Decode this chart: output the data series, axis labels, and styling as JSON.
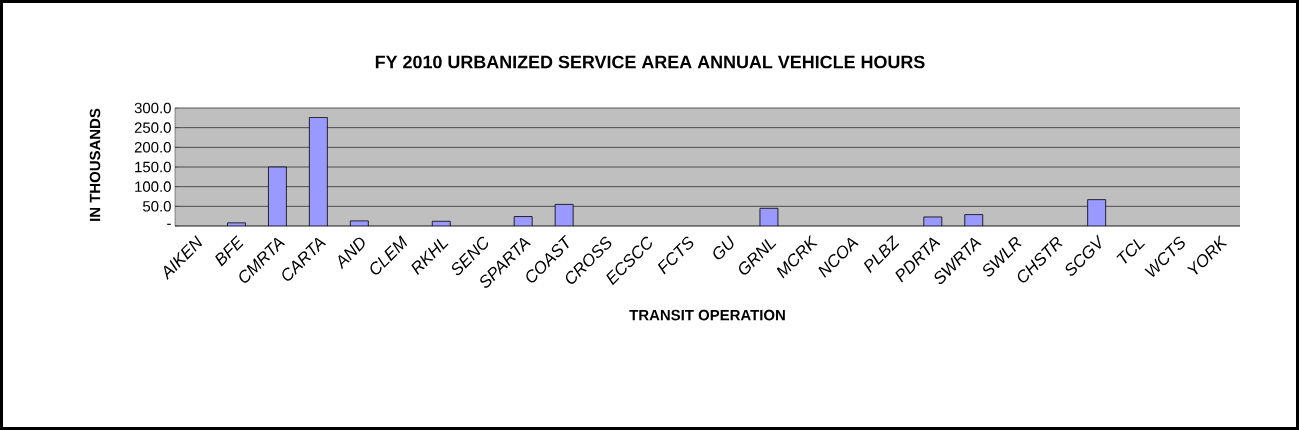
{
  "chart_data": {
    "type": "bar",
    "title": "FY 2010 URBANIZED SERVICE AREA ANNUAL VEHICLE HOURS",
    "xlabel": "TRANSIT OPERATION",
    "ylabel": "IN THOUSANDS",
    "categories": [
      "AIKEN",
      "BFE",
      "CMRTA",
      "CARTA",
      "AND",
      "CLEM",
      "RKHL",
      "SENC",
      "SPARTA",
      "COAST",
      "CROSS",
      "ECSCC",
      "FCTS",
      "GU",
      "GRNL",
      "MCRK",
      "NCOA",
      "PLBZ",
      "PDRTA",
      "SWRTA",
      "SWLR",
      "CHSTR",
      "SCGV",
      "TCL",
      "WCTS",
      "YORK"
    ],
    "values": [
      null,
      8,
      150,
      276,
      13,
      null,
      12,
      null,
      24,
      55,
      null,
      null,
      null,
      null,
      45,
      null,
      null,
      null,
      23,
      29,
      null,
      null,
      67,
      null,
      null,
      null
    ],
    "color": "#9999ff",
    "ylim": [
      0,
      300
    ],
    "yticks": [
      {
        "value": 0,
        "label": "-"
      },
      {
        "value": 50,
        "label": "50.0"
      },
      {
        "value": 100,
        "label": "100.0"
      },
      {
        "value": 150,
        "label": "150.0"
      },
      {
        "value": 200,
        "label": "200.0"
      },
      {
        "value": 250,
        "label": "250.0"
      },
      {
        "value": 300,
        "label": "300.0"
      }
    ],
    "grid": "y"
  }
}
